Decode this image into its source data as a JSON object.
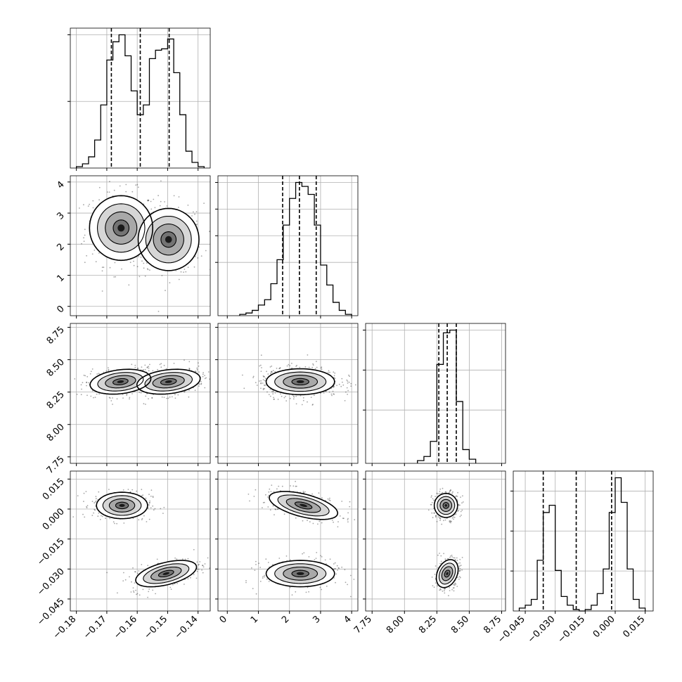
{
  "chart_data": {
    "type": "corner",
    "parameters": [
      {
        "ticks": [
          -0.18,
          -0.17,
          -0.16,
          -0.15,
          -0.14
        ],
        "tick_labels": [
          "−0.18",
          "−0.17",
          "−0.16",
          "−0.15",
          "−0.14"
        ],
        "range": [
          -0.182,
          -0.136
        ],
        "quantiles": [
          -0.1685,
          -0.159,
          -0.1495
        ],
        "hist": {
          "bin_edges": [
            -0.18,
            -0.178,
            -0.176,
            -0.174,
            -0.172,
            -0.17,
            -0.168,
            -0.166,
            -0.164,
            -0.162,
            -0.16,
            -0.158,
            -0.156,
            -0.154,
            -0.152,
            -0.15,
            -0.148,
            -0.146,
            -0.144,
            -0.142,
            -0.14,
            -0.138
          ],
          "counts": [
            0.01,
            0.03,
            0.08,
            0.2,
            0.45,
            0.77,
            0.9,
            0.95,
            0.8,
            0.55,
            0.38,
            0.45,
            0.78,
            0.84,
            0.85,
            0.92,
            0.68,
            0.38,
            0.12,
            0.04,
            0.01
          ]
        },
        "hist_ticks": [
          0.5,
          1.0
        ]
      },
      {
        "ticks": [
          0,
          1,
          2,
          3,
          4
        ],
        "tick_labels": [
          "0",
          "1",
          "2",
          "3",
          "4"
        ],
        "range": [
          -0.3,
          4.2
        ],
        "quantiles": [
          1.78,
          2.32,
          2.86
        ],
        "hist": {
          "bin_edges": [
            0.4,
            0.6,
            0.8,
            1.0,
            1.2,
            1.4,
            1.6,
            1.8,
            2.0,
            2.2,
            2.4,
            2.6,
            2.8,
            3.0,
            3.2,
            3.4,
            3.6,
            3.8,
            4.0
          ],
          "counts": [
            0.01,
            0.02,
            0.04,
            0.08,
            0.12,
            0.24,
            0.42,
            0.68,
            0.88,
            1.0,
            0.97,
            0.91,
            0.68,
            0.38,
            0.23,
            0.1,
            0.04,
            0.01
          ]
        },
        "hist_ticks": [
          0.4,
          0.6,
          0.8,
          1.0
        ]
      },
      {
        "ticks": [
          7.75,
          8.0,
          8.25,
          8.5,
          8.75
        ],
        "tick_labels": [
          "7.75",
          "8.00",
          "8.25",
          "8.50",
          "8.75"
        ],
        "range": [
          7.7,
          8.78
        ],
        "quantiles": [
          8.265,
          8.33,
          8.4
        ],
        "hist": {
          "bin_edges": [
            8.1,
            8.15,
            8.2,
            8.25,
            8.3,
            8.35,
            8.4,
            8.45,
            8.5,
            8.55
          ],
          "counts": [
            0.02,
            0.05,
            0.16,
            0.72,
            0.95,
            0.97,
            0.45,
            0.1,
            0.03
          ]
        },
        "hist_ticks": [
          0.4,
          0.7,
          1.0
        ]
      },
      {
        "ticks": [
          -0.045,
          -0.03,
          -0.015,
          0.0,
          0.015
        ],
        "tick_labels": [
          "−0.045",
          "−0.030",
          "−0.015",
          "0.000",
          "0.015"
        ],
        "range": [
          -0.051,
          0.019
        ],
        "quantiles": [
          -0.036,
          -0.0195,
          -0.0018
        ],
        "hist": {
          "bin_edges": [
            -0.048,
            -0.045,
            -0.042,
            -0.039,
            -0.036,
            -0.033,
            -0.03,
            -0.027,
            -0.024,
            -0.021,
            -0.018,
            -0.015,
            -0.012,
            -0.009,
            -0.006,
            -0.003,
            0.0,
            0.003,
            0.006,
            0.009,
            0.012,
            0.015
          ],
          "counts": [
            0.02,
            0.04,
            0.08,
            0.35,
            0.68,
            0.73,
            0.28,
            0.1,
            0.04,
            0.01,
            0.0,
            0.01,
            0.04,
            0.12,
            0.29,
            0.68,
            0.92,
            0.75,
            0.29,
            0.08,
            0.02
          ]
        },
        "hist_ticks": [
          0.3,
          0.6,
          0.9
        ]
      }
    ],
    "joint": [
      {
        "x": 0,
        "y": 1,
        "modes": [
          {
            "mx": -0.1653,
            "my": 2.52,
            "sx": 0.0052,
            "sy": 0.52,
            "r": 0.0
          },
          {
            "mx": -0.1497,
            "my": 2.15,
            "sx": 0.005,
            "sy": 0.5,
            "r": 0.0
          }
        ]
      },
      {
        "x": 0,
        "y": 2,
        "modes": [
          {
            "mx": -0.1655,
            "my": 8.33,
            "sx": 0.005,
            "sy": 0.048,
            "r": 0.25
          },
          {
            "mx": -0.1497,
            "my": 8.33,
            "sx": 0.0052,
            "sy": 0.048,
            "r": 0.25
          }
        ]
      },
      {
        "x": 0,
        "y": 3,
        "modes": [
          {
            "mx": -0.165,
            "my": 0.0018,
            "sx": 0.0042,
            "sy": 0.0033,
            "r": 0.0
          },
          {
            "mx": -0.1505,
            "my": -0.0323,
            "sx": 0.005,
            "sy": 0.0033,
            "r": 0.5
          }
        ]
      },
      {
        "x": 1,
        "y": 2,
        "modes": [
          {
            "mx": 2.35,
            "my": 8.33,
            "sx": 0.55,
            "sy": 0.05,
            "r": 0.0
          }
        ]
      },
      {
        "x": 1,
        "y": 3,
        "modes": [
          {
            "mx": 2.45,
            "my": 0.0018,
            "sx": 0.55,
            "sy": 0.0035,
            "r": -0.55
          },
          {
            "mx": 2.35,
            "my": -0.0323,
            "sx": 0.55,
            "sy": 0.0033,
            "r": 0.0
          }
        ]
      },
      {
        "x": 2,
        "y": 3,
        "modes": [
          {
            "mx": 8.32,
            "my": 0.0018,
            "sx": 0.045,
            "sy": 0.003,
            "r": 0.0
          },
          {
            "mx": 8.33,
            "my": -0.0323,
            "sx": 0.042,
            "sy": 0.0035,
            "r": 0.3
          }
        ]
      }
    ],
    "contour_levels_sigma": [
      0.5,
      1.0,
      1.5,
      2.0
    ],
    "grid": true,
    "colors": {
      "line": "#000000",
      "grid": "#b0b0b0",
      "sample": "#000000"
    }
  }
}
